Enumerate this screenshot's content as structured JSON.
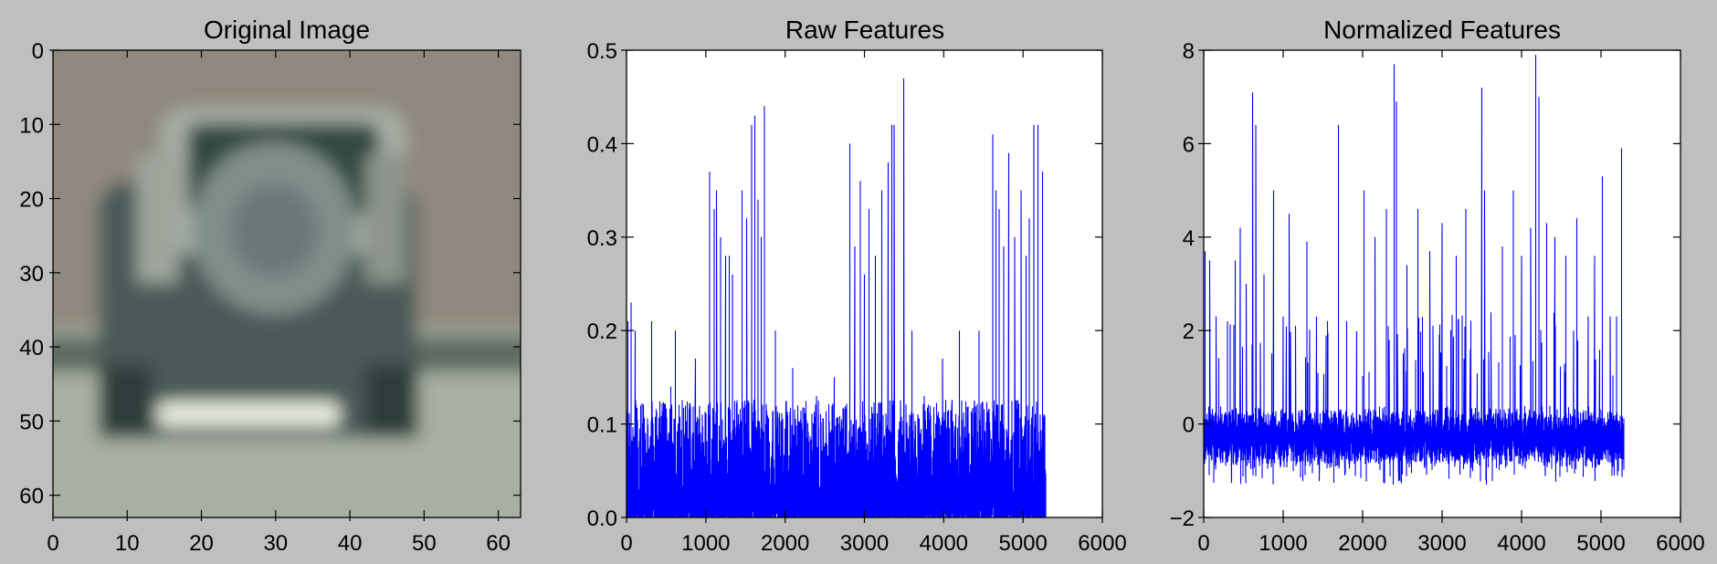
{
  "figure": {
    "background": "#bfbfbf"
  },
  "chart_data": [
    {
      "type": "image",
      "title": "Original Image",
      "xlim": [
        0,
        63
      ],
      "ylim": [
        63,
        0
      ],
      "xticks": [
        0,
        10,
        20,
        30,
        40,
        50,
        60
      ],
      "yticks": [
        0,
        10,
        20,
        30,
        40,
        50,
        60
      ],
      "content": "blurred 64x64 photo of the rear of a dark SUV with a spare wheel cover"
    },
    {
      "type": "line",
      "title": "Raw Features",
      "xlim": [
        0,
        6000
      ],
      "ylim": [
        0.0,
        0.5
      ],
      "xticks": [
        0,
        1000,
        2000,
        3000,
        4000,
        5000,
        6000
      ],
      "yticks": [
        0.0,
        0.1,
        0.2,
        0.3,
        0.4,
        0.5
      ],
      "ytick_labels": [
        "0.0",
        "0.1",
        "0.2",
        "0.3",
        "0.4",
        "0.5"
      ],
      "line_color": "#0000ff",
      "series": [
        {
          "n_points": 5292,
          "baseline": 0.0,
          "typical_peak": 0.09,
          "peaks": [
            {
              "x": 20,
              "y": 0.21
            },
            {
              "x": 60,
              "y": 0.23
            },
            {
              "x": 110,
              "y": 0.2
            },
            {
              "x": 180,
              "y": 0.12
            },
            {
              "x": 320,
              "y": 0.21
            },
            {
              "x": 560,
              "y": 0.14
            },
            {
              "x": 620,
              "y": 0.2
            },
            {
              "x": 870,
              "y": 0.17
            },
            {
              "x": 1050,
              "y": 0.37
            },
            {
              "x": 1110,
              "y": 0.33
            },
            {
              "x": 1140,
              "y": 0.35
            },
            {
              "x": 1190,
              "y": 0.3
            },
            {
              "x": 1250,
              "y": 0.28
            },
            {
              "x": 1300,
              "y": 0.28
            },
            {
              "x": 1340,
              "y": 0.26
            },
            {
              "x": 1460,
              "y": 0.35
            },
            {
              "x": 1520,
              "y": 0.32
            },
            {
              "x": 1580,
              "y": 0.42
            },
            {
              "x": 1620,
              "y": 0.43
            },
            {
              "x": 1660,
              "y": 0.34
            },
            {
              "x": 1700,
              "y": 0.3
            },
            {
              "x": 1740,
              "y": 0.44
            },
            {
              "x": 1880,
              "y": 0.2
            },
            {
              "x": 2100,
              "y": 0.16
            },
            {
              "x": 2400,
              "y": 0.13
            },
            {
              "x": 2620,
              "y": 0.15
            },
            {
              "x": 2820,
              "y": 0.4
            },
            {
              "x": 2880,
              "y": 0.29
            },
            {
              "x": 2950,
              "y": 0.36
            },
            {
              "x": 3000,
              "y": 0.26
            },
            {
              "x": 3060,
              "y": 0.33
            },
            {
              "x": 3140,
              "y": 0.28
            },
            {
              "x": 3220,
              "y": 0.35
            },
            {
              "x": 3300,
              "y": 0.38
            },
            {
              "x": 3350,
              "y": 0.42
            },
            {
              "x": 3380,
              "y": 0.42
            },
            {
              "x": 3500,
              "y": 0.47
            },
            {
              "x": 3600,
              "y": 0.2
            },
            {
              "x": 3760,
              "y": 0.13
            },
            {
              "x": 3990,
              "y": 0.17
            },
            {
              "x": 4200,
              "y": 0.2
            },
            {
              "x": 4450,
              "y": 0.2
            },
            {
              "x": 4620,
              "y": 0.41
            },
            {
              "x": 4660,
              "y": 0.35
            },
            {
              "x": 4700,
              "y": 0.33
            },
            {
              "x": 4760,
              "y": 0.29
            },
            {
              "x": 4820,
              "y": 0.39
            },
            {
              "x": 4900,
              "y": 0.3
            },
            {
              "x": 4980,
              "y": 0.35
            },
            {
              "x": 5040,
              "y": 0.28
            },
            {
              "x": 5080,
              "y": 0.32
            },
            {
              "x": 5140,
              "y": 0.42
            },
            {
              "x": 5190,
              "y": 0.42
            },
            {
              "x": 5250,
              "y": 0.37
            }
          ]
        }
      ]
    },
    {
      "type": "line",
      "title": "Normalized Features",
      "xlim": [
        0,
        6000
      ],
      "ylim": [
        -2,
        8
      ],
      "xticks": [
        0,
        1000,
        2000,
        3000,
        4000,
        5000,
        6000
      ],
      "yticks": [
        -2,
        0,
        2,
        4,
        6,
        8
      ],
      "ytick_labels": [
        "−2",
        "0",
        "2",
        "4",
        "6",
        "8"
      ],
      "line_color": "#0000ff",
      "series": [
        {
          "n_points": 5292,
          "band": [
            -1.0,
            1.0
          ],
          "min": -1.3,
          "peaks": [
            {
              "x": 20,
              "y": 3.7
            },
            {
              "x": 80,
              "y": 3.5
            },
            {
              "x": 160,
              "y": 2.3
            },
            {
              "x": 300,
              "y": 2.2
            },
            {
              "x": 400,
              "y": 3.5
            },
            {
              "x": 460,
              "y": 4.2
            },
            {
              "x": 540,
              "y": 3.0
            },
            {
              "x": 620,
              "y": 7.1
            },
            {
              "x": 660,
              "y": 6.4
            },
            {
              "x": 760,
              "y": 3.2
            },
            {
              "x": 880,
              "y": 5.0
            },
            {
              "x": 1000,
              "y": 2.3
            },
            {
              "x": 1080,
              "y": 4.5
            },
            {
              "x": 1160,
              "y": 2.1
            },
            {
              "x": 1300,
              "y": 3.9
            },
            {
              "x": 1420,
              "y": 2.3
            },
            {
              "x": 1560,
              "y": 2.2
            },
            {
              "x": 1700,
              "y": 6.4
            },
            {
              "x": 1800,
              "y": 2.2
            },
            {
              "x": 2020,
              "y": 5.0
            },
            {
              "x": 2160,
              "y": 4.0
            },
            {
              "x": 2300,
              "y": 4.6
            },
            {
              "x": 2400,
              "y": 7.7
            },
            {
              "x": 2430,
              "y": 6.9
            },
            {
              "x": 2560,
              "y": 3.4
            },
            {
              "x": 2700,
              "y": 4.6
            },
            {
              "x": 2850,
              "y": 3.7
            },
            {
              "x": 3000,
              "y": 4.3
            },
            {
              "x": 3180,
              "y": 3.6
            },
            {
              "x": 3300,
              "y": 4.6
            },
            {
              "x": 3500,
              "y": 7.2
            },
            {
              "x": 3540,
              "y": 5.0
            },
            {
              "x": 3620,
              "y": 2.3
            },
            {
              "x": 3760,
              "y": 3.8
            },
            {
              "x": 3900,
              "y": 5.0
            },
            {
              "x": 4000,
              "y": 3.6
            },
            {
              "x": 4120,
              "y": 4.2
            },
            {
              "x": 4180,
              "y": 7.9
            },
            {
              "x": 4220,
              "y": 7.0
            },
            {
              "x": 4320,
              "y": 4.3
            },
            {
              "x": 4420,
              "y": 4.0
            },
            {
              "x": 4560,
              "y": 3.6
            },
            {
              "x": 4700,
              "y": 4.4
            },
            {
              "x": 4840,
              "y": 2.3
            },
            {
              "x": 4920,
              "y": 3.6
            },
            {
              "x": 5020,
              "y": 5.3
            },
            {
              "x": 5120,
              "y": 2.3
            },
            {
              "x": 5200,
              "y": 2.3
            },
            {
              "x": 5260,
              "y": 5.9
            }
          ]
        }
      ]
    }
  ]
}
